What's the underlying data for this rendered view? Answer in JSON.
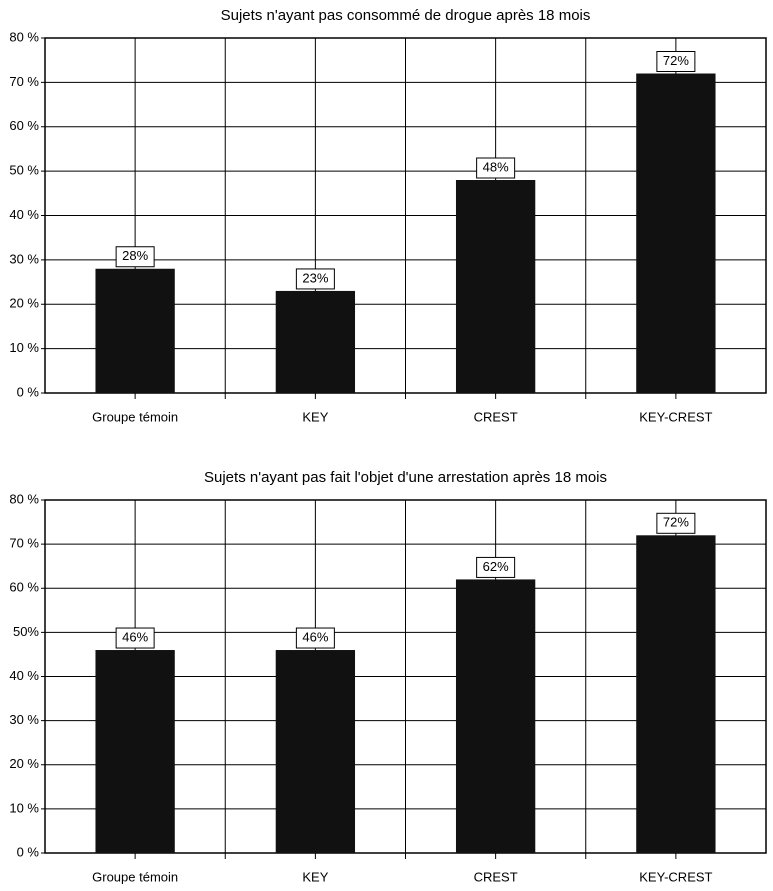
{
  "chart_data": [
    {
      "type": "bar",
      "title": "Sujets n'ayant pas consommé de drogue après 18 mois",
      "categories": [
        "Groupe témoin",
        "KEY",
        "CREST",
        "KEY-CREST"
      ],
      "values": [
        28,
        23,
        48,
        72
      ],
      "value_labels": [
        "28%",
        "23%",
        "48%",
        "72%"
      ],
      "color": "#111111",
      "ylim": [
        0,
        80
      ],
      "yticks": [
        {
          "value": 0,
          "label": "0 %"
        },
        {
          "value": 10,
          "label": "10 %"
        },
        {
          "value": 20,
          "label": "20 %"
        },
        {
          "value": 30,
          "label": "30 %"
        },
        {
          "value": 40,
          "label": "40 %"
        },
        {
          "value": 50,
          "label": "50 %"
        },
        {
          "value": 60,
          "label": "60 %"
        },
        {
          "value": 70,
          "label": "70 %"
        },
        {
          "value": 80,
          "label": "80 %"
        }
      ],
      "grid": true
    },
    {
      "type": "bar",
      "title": "Sujets n'ayant pas fait l'objet d'une arrestation après 18 mois",
      "categories": [
        "Groupe témoin",
        "KEY",
        "CREST",
        "KEY-CREST"
      ],
      "values": [
        46,
        46,
        62,
        72
      ],
      "value_labels": [
        "46%",
        "46%",
        "62%",
        "72%"
      ],
      "color": "#111111",
      "ylim": [
        0,
        80
      ],
      "yticks": [
        {
          "value": 0,
          "label": "0 %"
        },
        {
          "value": 10,
          "label": "10 %"
        },
        {
          "value": 20,
          "label": "20 %"
        },
        {
          "value": 30,
          "label": "30 %"
        },
        {
          "value": 40,
          "label": "40 %"
        },
        {
          "value": 50,
          "label": "50%"
        },
        {
          "value": 60,
          "label": "60 %"
        },
        {
          "value": 70,
          "label": "70 %"
        },
        {
          "value": 80,
          "label": "80 %"
        }
      ],
      "grid": true
    }
  ]
}
